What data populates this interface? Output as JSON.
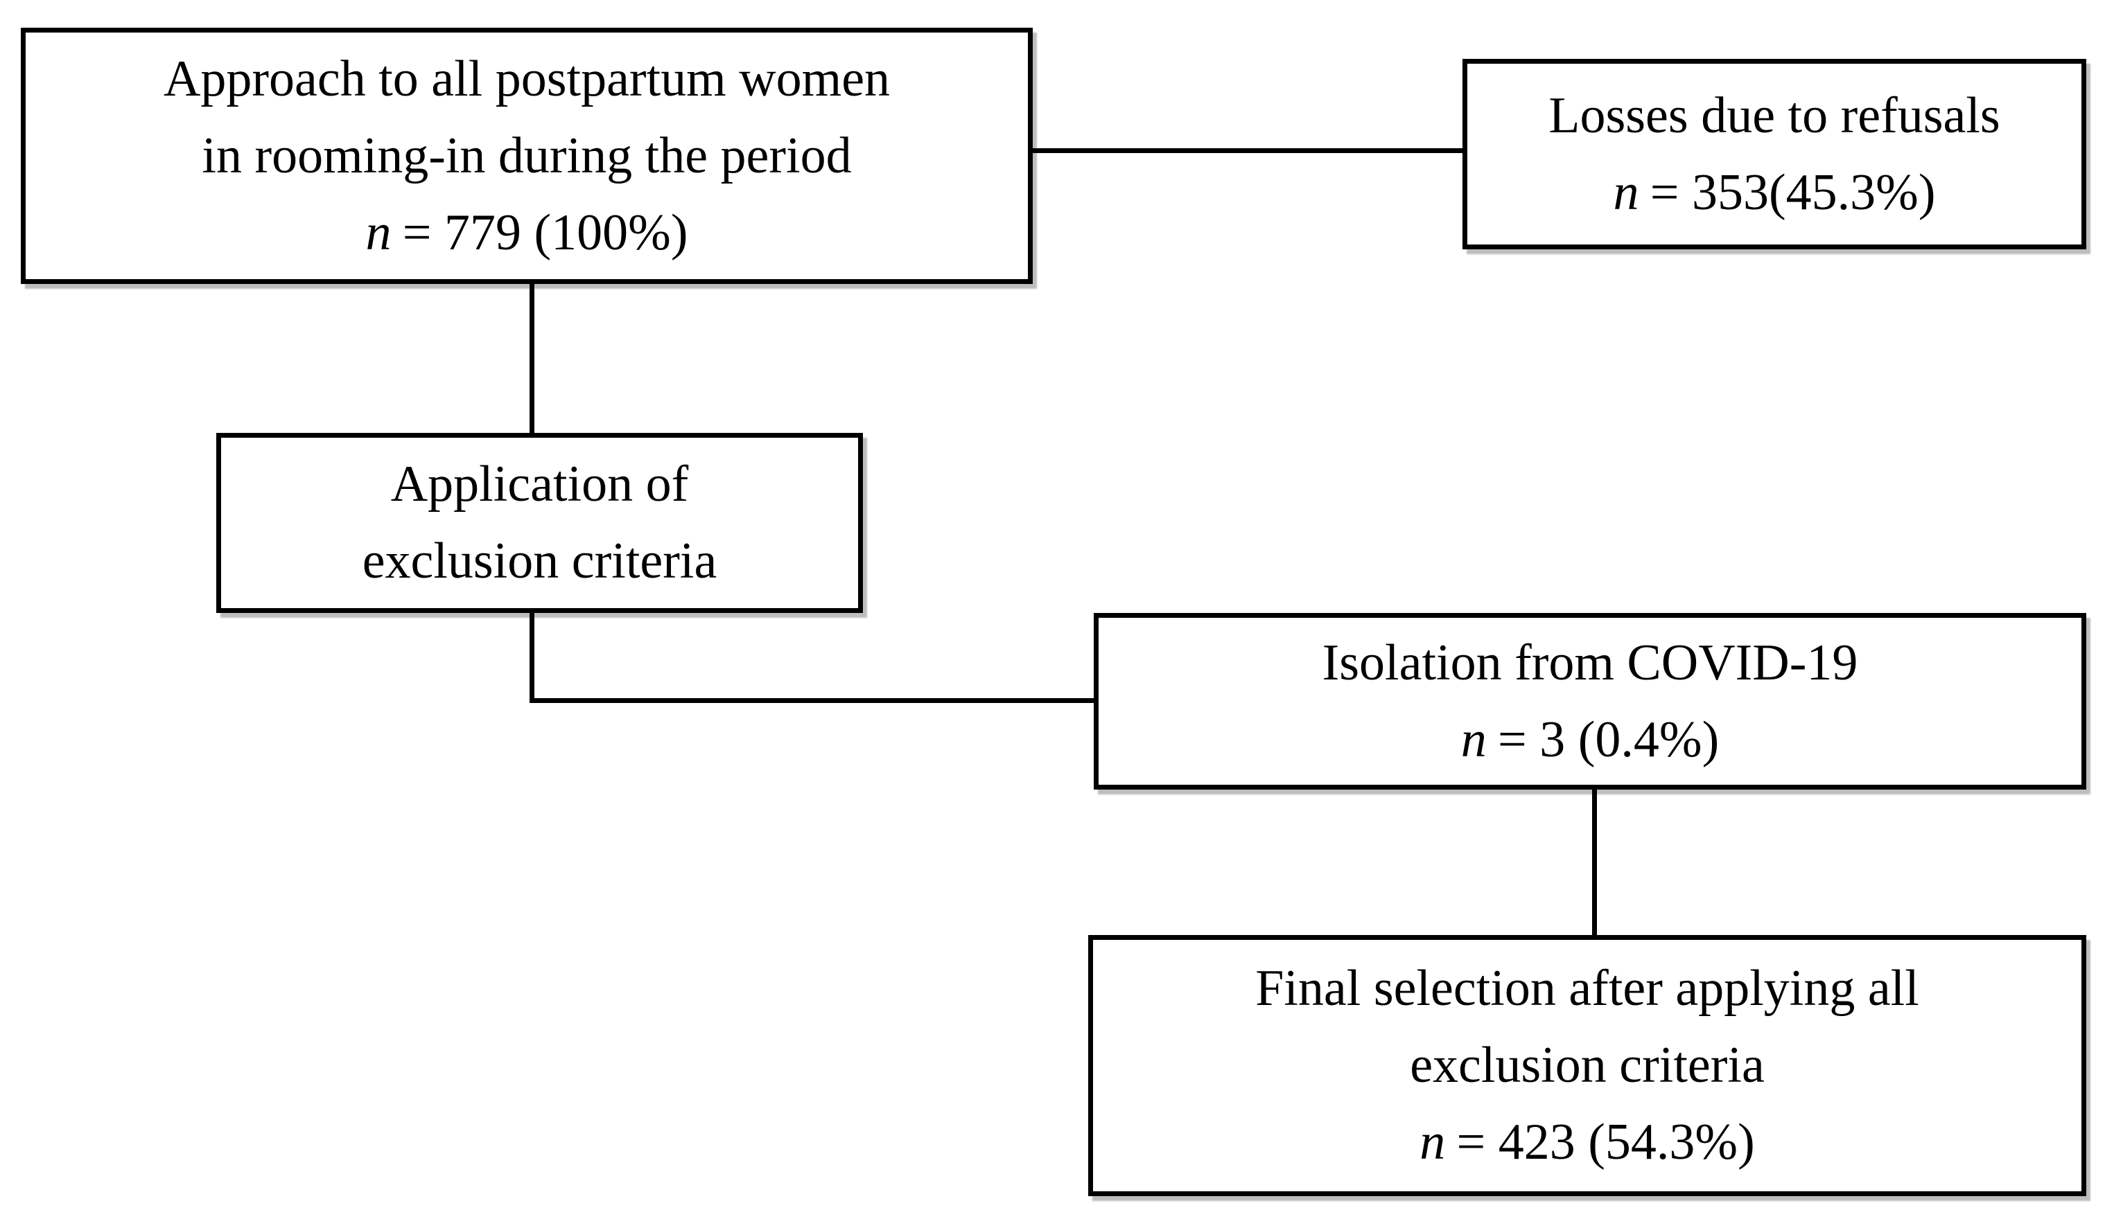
{
  "figure": {
    "background_color": "#ffffff",
    "line_color": "#000000",
    "text_color": "#000000",
    "boxes": {
      "approach": {
        "lines": [
          "Approach to all postpartum women",
          "in rooming-in during the period"
        ],
        "n_var": "n",
        "n_value": "= 779 (100%)"
      },
      "losses": {
        "lines": [
          "Losses due to refusals"
        ],
        "n_var": "n",
        "n_value": "= 353(45.3%)"
      },
      "exclusion": {
        "lines": [
          "Application of",
          "exclusion criteria"
        ]
      },
      "isolation": {
        "lines": [
          "Isolation from COVID-19"
        ],
        "n_var": "n",
        "n_value": "= 3 (0.4%)"
      },
      "final": {
        "lines": [
          "Final selection after applying all",
          "exclusion criteria"
        ],
        "n_var": "n",
        "n_value": "= 423 (54.3%)"
      }
    }
  }
}
